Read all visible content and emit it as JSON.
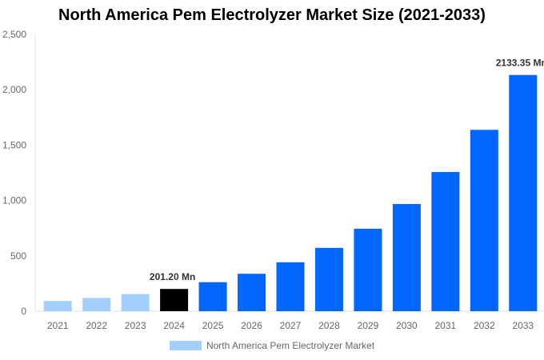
{
  "chart_data": {
    "type": "bar",
    "title": "North America Pem Electrolyzer Market Size (2021-2033)",
    "categories": [
      "2021",
      "2022",
      "2023",
      "2024",
      "2025",
      "2026",
      "2027",
      "2028",
      "2029",
      "2030",
      "2031",
      "2032",
      "2033"
    ],
    "series": [
      {
        "name": "North America Pem Electrolyzer Market",
        "values": [
          92,
          120,
          155,
          201.2,
          262,
          338,
          442,
          572,
          745,
          968,
          1257,
          1638,
          2133.35
        ]
      }
    ],
    "data_labels": {
      "3": "201.20 Mn",
      "12": "2133.35 Mn"
    },
    "ylim": [
      0,
      2500
    ],
    "yticks": [
      0,
      500,
      1000,
      1500,
      2000,
      2500
    ],
    "ytick_labels": [
      "0",
      "500",
      "1,000",
      "1,500",
      "2,000",
      "2,500"
    ],
    "grid": false,
    "legend_position": "bottom",
    "colors": {
      "historical": "#a3cfff",
      "base_year": "#000000",
      "forecast": "#0066ff"
    }
  }
}
